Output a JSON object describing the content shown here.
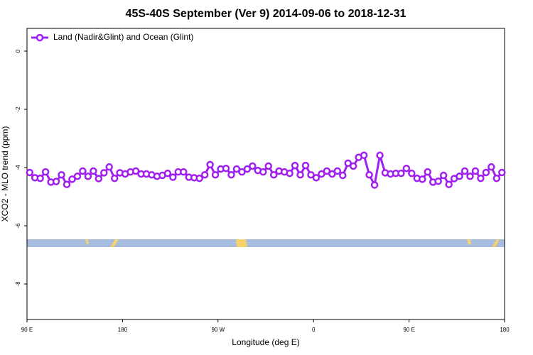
{
  "chart_data": {
    "type": "line",
    "title": "45S-40S September (Ver 9)   2014-09-06 to 2018-12-31",
    "x_label": "Longitude (deg E)",
    "y_label": "XCO2 - MLO trend (ppm)",
    "xlim": [
      90,
      540
    ],
    "xticks": [
      {
        "value": 90,
        "label": "90 E"
      },
      180,
      {
        "value": 270,
        "label": "90 W"
      },
      {
        "value": 360,
        "label": "0"
      },
      {
        "value": 450,
        "label": "90 E"
      },
      {
        "value": 540,
        "label": "180"
      }
    ],
    "ylim": [
      -9.22,
      0.78
    ],
    "yticks": [
      0,
      -2,
      -4,
      -6,
      -8
    ],
    "legend": "top-left",
    "x": [
      92.5,
      97.5,
      102.5,
      107.5,
      112.5,
      117.5,
      122.5,
      127.5,
      132.5,
      137.5,
      142.5,
      147.5,
      152.5,
      157.5,
      162.5,
      167.5,
      172.5,
      177.5,
      182.5,
      187.5,
      192.5,
      197.5,
      202.5,
      207.5,
      212.5,
      217.5,
      222.5,
      227.5,
      232.5,
      237.5,
      242.5,
      247.5,
      252.5,
      257.5,
      262.5,
      267.5,
      272.5,
      277.5,
      282.5,
      287.5,
      292.5,
      297.5,
      302.5,
      307.5,
      312.5,
      317.5,
      322.5,
      327.5,
      332.5,
      337.5,
      342.5,
      347.5,
      352.5,
      357.5,
      362.5,
      367.5,
      372.5,
      377.5,
      382.5,
      387.5,
      392.5,
      397.5,
      402.5,
      407.5,
      412.5,
      417.5,
      422.5,
      427.5,
      432.5,
      437.5,
      442.5,
      447.5,
      452.5,
      457.5,
      462.5,
      467.5,
      472.5,
      477.5,
      482.5,
      487.5,
      492.5,
      497.5,
      502.5,
      507.5,
      512.5,
      517.5,
      522.5,
      527.5,
      532.5,
      537.5
    ],
    "series": [
      {
        "name": "Land (Nadir&Glint) and Ocean (Glint)",
        "color": "#a020f0",
        "values": [
          -4.17,
          -4.35,
          -4.37,
          -4.15,
          -4.5,
          -4.48,
          -4.25,
          -4.58,
          -4.4,
          -4.3,
          -4.12,
          -4.3,
          -4.12,
          -4.38,
          -4.18,
          -3.98,
          -4.37,
          -4.18,
          -4.22,
          -4.15,
          -4.12,
          -4.22,
          -4.22,
          -4.25,
          -4.3,
          -4.27,
          -4.2,
          -4.33,
          -4.15,
          -4.15,
          -4.33,
          -4.35,
          -4.37,
          -4.25,
          -3.9,
          -4.25,
          -4.05,
          -4.03,
          -4.25,
          -4.05,
          -4.15,
          -4.05,
          -3.95,
          -4.1,
          -4.15,
          -3.95,
          -4.25,
          -4.12,
          -4.15,
          -4.2,
          -3.93,
          -4.25,
          -3.93,
          -4.25,
          -4.35,
          -4.22,
          -4.12,
          -4.22,
          -4.12,
          -4.27,
          -3.85,
          -3.95,
          -3.65,
          -3.58,
          -4.25,
          -4.6,
          -3.58,
          -4.18,
          -4.22,
          -4.2,
          -4.2,
          -4.03,
          -4.2,
          -4.37,
          -4.4,
          -4.15,
          -4.5,
          -4.47,
          -4.27,
          -4.58,
          -4.38,
          -4.3,
          -4.12,
          -4.3,
          -4.12,
          -4.37,
          -4.17,
          -3.98,
          -4.37,
          -4.17
        ]
      }
    ]
  }
}
